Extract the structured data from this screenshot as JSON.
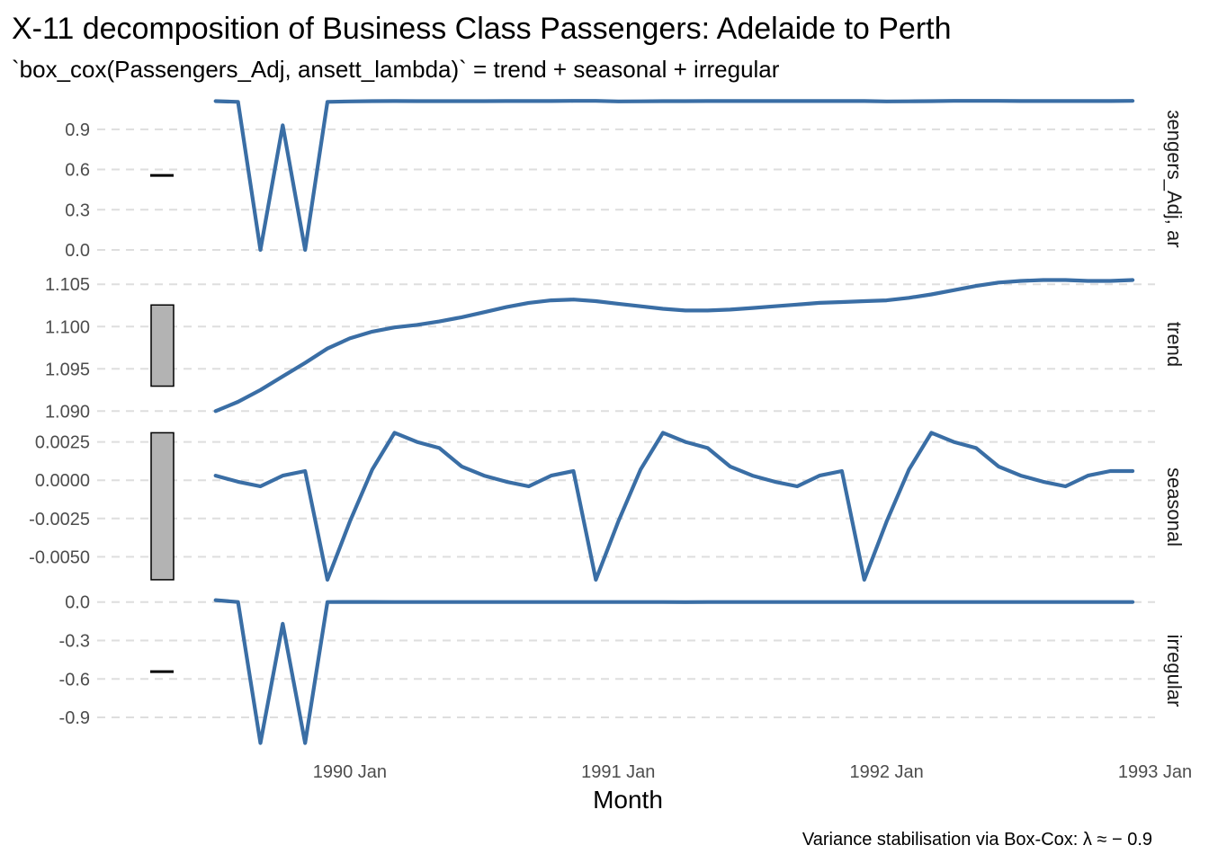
{
  "chart_data": {
    "type": "line",
    "title": "X-11 decomposition of Business Class Passengers: Adelaide to Perth",
    "subtitle": "`box_cox(Passengers_Adj, ansett_lambda)` = trend + seasonal + irregular",
    "xlabel": "Month",
    "caption": "Variance stabilisation via Box-Cox: λ ≈ − 0.9",
    "x_ticks": [
      "1990 Jan",
      "1991 Jan",
      "1992 Jan",
      "1993 Jan"
    ],
    "x_start": "1989 Jul",
    "x_end": "1992 Dec",
    "x_range": [
      "1989 May",
      "1993 Jan"
    ],
    "series_color": "#3a6ea5",
    "grid": true,
    "panels": [
      {
        "strip": "box_cox(Passengers_Adj, ansett_lambda)",
        "strip_visible": "ɜengers_Adj, ar",
        "ylim": [
          -0.04,
          1.1
        ],
        "y_ticks": [
          0.0,
          0.3,
          0.6,
          0.9
        ],
        "y_tick_labels": [
          "0.0",
          "0.3",
          "0.6",
          "0.9"
        ],
        "values": [
          1.11,
          1.105,
          0.0,
          0.93,
          0.0,
          1.105,
          1.108,
          1.11,
          1.111,
          1.11,
          1.11,
          1.11,
          1.11,
          1.111,
          1.111,
          1.111,
          1.112,
          1.112,
          1.108,
          1.109,
          1.11,
          1.11,
          1.111,
          1.111,
          1.111,
          1.111,
          1.111,
          1.111,
          1.111,
          1.111,
          1.108,
          1.109,
          1.11,
          1.112,
          1.112,
          1.112,
          1.111,
          1.111,
          1.111,
          1.111,
          1.111,
          1.112
        ]
      },
      {
        "strip": "trend",
        "strip_visible": "trend",
        "ylim": [
          1.0895,
          1.1063
        ],
        "y_ticks": [
          1.09,
          1.095,
          1.1,
          1.105
        ],
        "y_tick_labels": [
          "1.090",
          "1.095",
          "1.100",
          "1.105"
        ],
        "values": [
          1.09,
          1.0911,
          1.0925,
          1.0941,
          1.0957,
          1.0974,
          1.0986,
          1.0994,
          1.0999,
          1.1002,
          1.1006,
          1.1011,
          1.1017,
          1.1023,
          1.1028,
          1.1031,
          1.1032,
          1.103,
          1.1027,
          1.1024,
          1.1021,
          1.1019,
          1.1019,
          1.102,
          1.1022,
          1.1024,
          1.1026,
          1.1028,
          1.1029,
          1.103,
          1.1031,
          1.1034,
          1.1038,
          1.1043,
          1.1048,
          1.1052,
          1.1054,
          1.1055,
          1.1055,
          1.1054,
          1.1054,
          1.1055
        ]
      },
      {
        "strip": "seasonal",
        "strip_visible": "seasonal",
        "ylim": [
          -0.0068,
          0.0033
        ],
        "y_ticks": [
          -0.005,
          -0.0025,
          0.0,
          0.0025
        ],
        "y_tick_labels": [
          "-0.0050",
          "-0.0025",
          "0.0000",
          "0.0025"
        ],
        "values": [
          0.0003,
          -0.0001,
          -0.0004,
          0.0003,
          0.0006,
          -0.0065,
          -0.0027,
          0.0007,
          0.0031,
          0.0025,
          0.0021,
          0.0009,
          0.0003,
          -0.0001,
          -0.0004,
          0.0003,
          0.0006,
          -0.0065,
          -0.0027,
          0.0007,
          0.0031,
          0.0025,
          0.0021,
          0.0009,
          0.0003,
          -0.0001,
          -0.0004,
          0.0003,
          0.0006,
          -0.0065,
          -0.0027,
          0.0007,
          0.0031,
          0.0025,
          0.0021,
          0.0009,
          0.0003,
          -0.0001,
          -0.0004,
          0.0003,
          0.0006,
          0.0006
        ]
      },
      {
        "strip": "irregular",
        "strip_visible": "irregular",
        "ylim": [
          -1.11,
          0.04
        ],
        "y_ticks": [
          -0.9,
          -0.6,
          -0.3,
          0.0
        ],
        "y_tick_labels": [
          "-0.9",
          "-0.6",
          "-0.3",
          "0.0"
        ],
        "values": [
          0.015,
          0.0,
          -1.1,
          -0.17,
          -1.1,
          0.0,
          0.001,
          0.001,
          0.0,
          0.0,
          0.0,
          0.0,
          0.0,
          0.0,
          0.0,
          0.0,
          0.0,
          0.0,
          0.0,
          0.0,
          0.0,
          -0.001,
          0.0,
          0.0,
          0.0,
          0.0,
          0.0,
          0.0,
          0.0,
          0.0,
          0.0,
          0.0,
          0.0,
          0.0,
          0.0,
          0.0,
          0.0,
          0.0,
          0.0,
          0.0,
          0.0,
          0.0
        ]
      }
    ]
  }
}
